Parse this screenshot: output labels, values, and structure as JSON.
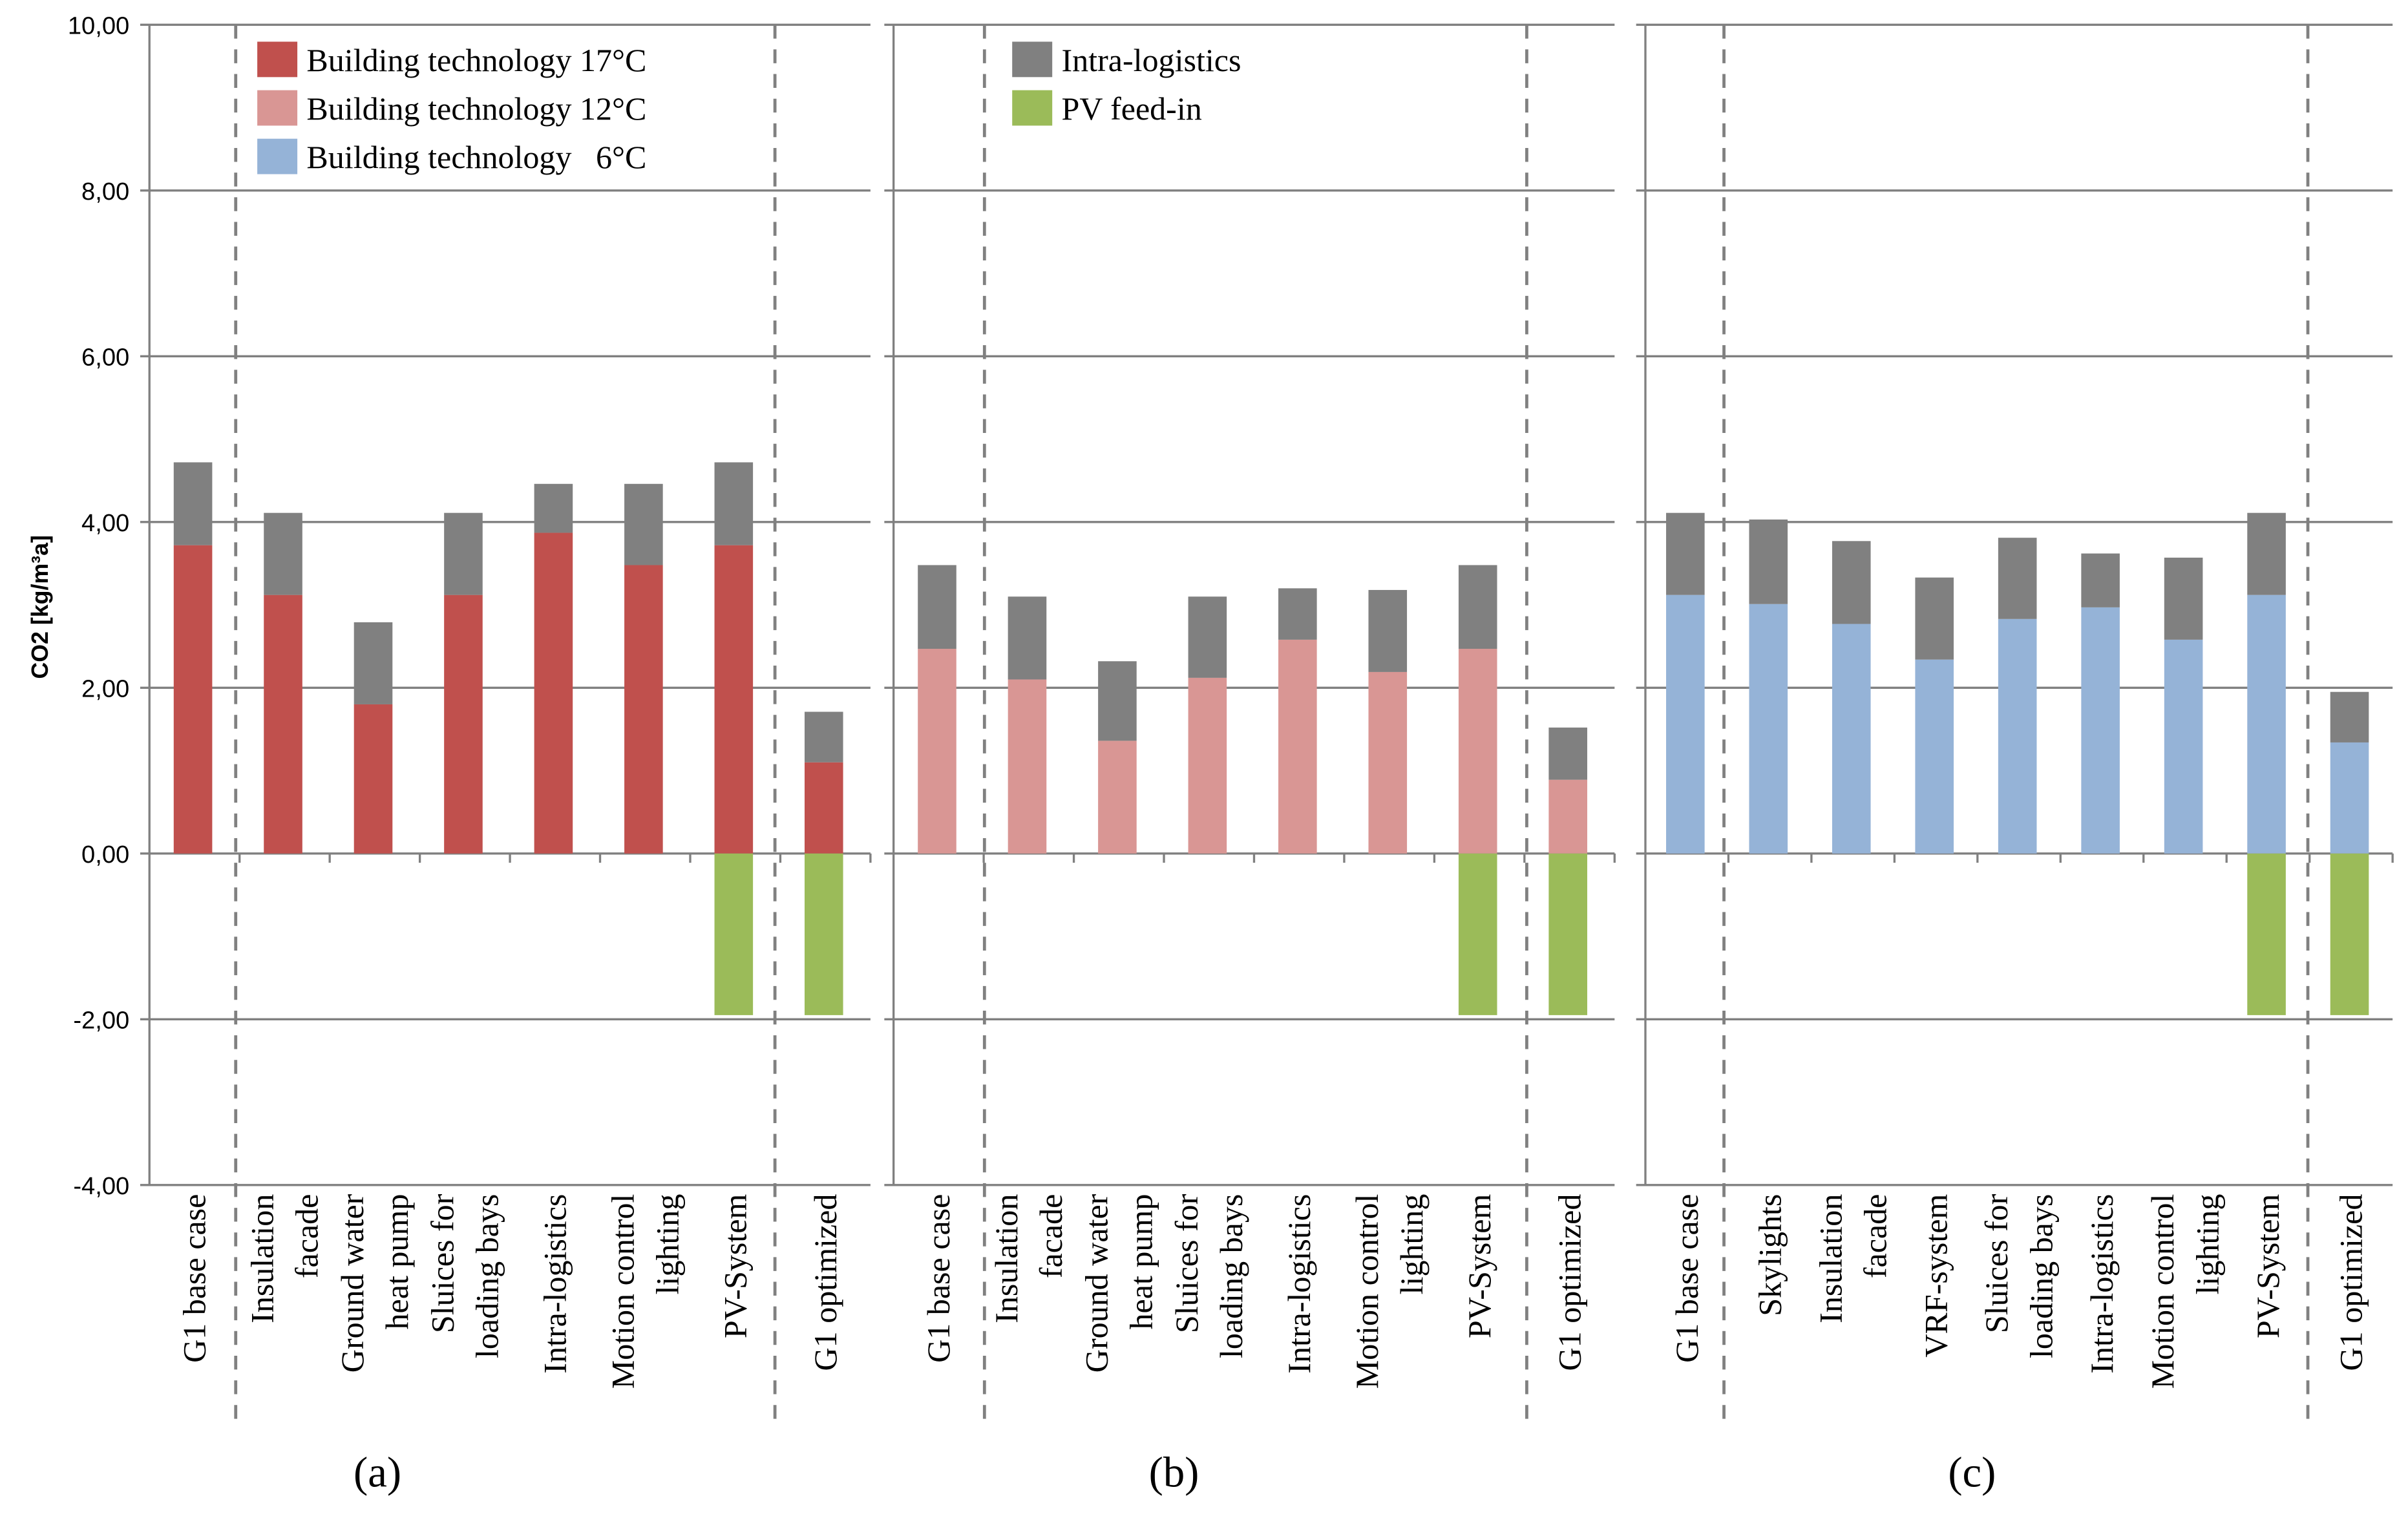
{
  "chart_data": {
    "type": "bar",
    "stacked": true,
    "ylabel": "CO2 [kg/m³a]",
    "ylim": [
      -4,
      10
    ],
    "yticks": [
      "10,00",
      "8,00",
      "6,00",
      "4,00",
      "2,00",
      "0,00",
      "-2,00",
      "-4,00"
    ],
    "ytick_values": [
      10,
      8,
      6,
      4,
      2,
      0,
      -2,
      -4
    ],
    "grid": true,
    "colors": {
      "bt17": "#c0504d",
      "bt12": "#d99694",
      "bt6": "#95b3d7",
      "intra": "#808080",
      "pv": "#9bbb59",
      "axis": "#808080"
    },
    "legend": [
      {
        "key": "bt17",
        "label": "Building technology 17°C",
        "panel": 0
      },
      {
        "key": "bt12",
        "label": "Building technology 12°C",
        "panel": 0
      },
      {
        "key": "bt6",
        "label": "Building technology   6°C",
        "panel": 0
      },
      {
        "key": "intra",
        "label": "Intra-logistics",
        "panel": 1
      },
      {
        "key": "pv",
        "label": "PV feed-in",
        "panel": 1
      }
    ],
    "panels": [
      {
        "label": "(a)",
        "base_key": "bt17",
        "categories": [
          "G1 base case",
          "Insulation\nfacade",
          "Ground water\nheat pump",
          "Sluices for\nloading bays",
          "Intra-logistics",
          "Motion control\nlighting",
          "PV-System",
          "G1 optimized"
        ],
        "building": [
          3.72,
          3.12,
          1.8,
          3.12,
          3.87,
          3.48,
          3.72,
          1.1
        ],
        "intra": [
          1.0,
          0.99,
          0.99,
          0.99,
          0.59,
          0.98,
          1.0,
          0.61
        ],
        "pv": [
          0,
          0,
          0,
          0,
          0,
          0,
          -1.95,
          -1.95
        ]
      },
      {
        "label": "(b)",
        "base_key": "bt12",
        "categories": [
          "G1 base case",
          "Insulation\nfacade",
          "Ground water\nheat pump",
          "Sluices for\nloading bays",
          "Intra-logistics",
          "Motion control\nlighting",
          "PV-System",
          "G1 optimized"
        ],
        "building": [
          2.47,
          2.1,
          1.36,
          2.12,
          2.58,
          2.19,
          2.47,
          0.89
        ],
        "intra": [
          1.01,
          1.0,
          0.96,
          0.98,
          0.62,
          0.99,
          1.01,
          0.63
        ],
        "pv": [
          0,
          0,
          0,
          0,
          0,
          0,
          -1.95,
          -1.95
        ]
      },
      {
        "label": "(c)",
        "base_key": "bt6",
        "categories": [
          "G1 base case",
          "Skylights",
          "Insulation\nfacade",
          "VRF-system",
          "Sluices for\nloading bays",
          "Intra-logistics",
          "Motion control\nlighting",
          "PV-System",
          "G1 optimized"
        ],
        "building": [
          3.12,
          3.01,
          2.77,
          2.34,
          2.83,
          2.97,
          2.58,
          3.12,
          1.34
        ],
        "intra": [
          0.99,
          1.02,
          1.0,
          0.99,
          0.98,
          0.65,
          0.99,
          0.99,
          0.61
        ],
        "pv": [
          0,
          0,
          0,
          0,
          0,
          0,
          0,
          -1.95,
          -1.95
        ]
      }
    ]
  }
}
